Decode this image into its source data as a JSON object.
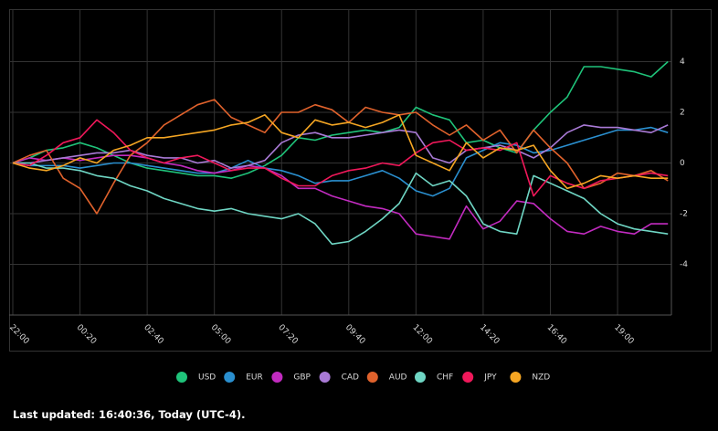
{
  "chart_data": {
    "type": "line",
    "categories": [
      "22:00",
      null,
      null,
      null,
      "00:20",
      null,
      null,
      null,
      "02:40",
      null,
      null,
      null,
      "05:00",
      null,
      null,
      null,
      "07:20",
      null,
      null,
      null,
      "09:40",
      null,
      null,
      null,
      "12:00",
      null,
      null,
      null,
      "14:20",
      null,
      null,
      null,
      "16:40",
      null,
      null,
      null,
      "19:00",
      null,
      null,
      null
    ],
    "ylim": [
      -6,
      6
    ],
    "yticks": [
      -4,
      -2,
      0,
      2,
      4
    ],
    "grid": true,
    "series": [
      {
        "name": "USD",
        "color": "#1fc37a",
        "values": [
          0,
          0.2,
          0.5,
          0.6,
          0.8,
          0.6,
          0.3,
          0,
          -0.2,
          -0.3,
          -0.4,
          -0.5,
          -0.5,
          -0.6,
          -0.4,
          -0.1,
          0.3,
          1.0,
          0.9,
          1.1,
          1.2,
          1.3,
          1.2,
          1.4,
          2.2,
          1.9,
          1.7,
          0.8,
          0.9,
          0.6,
          0.4,
          1.3,
          2.0,
          2.6,
          3.8,
          3.8,
          3.7,
          3.6,
          3.4,
          4.0
        ]
      },
      {
        "name": "EUR",
        "color": "#2a8fcf",
        "values": [
          0,
          -0.1,
          -0.1,
          -0.1,
          -0.2,
          -0.1,
          0,
          0,
          -0.1,
          -0.2,
          -0.3,
          -0.4,
          -0.4,
          -0.2,
          0.1,
          -0.2,
          -0.3,
          -0.5,
          -0.8,
          -0.7,
          -0.7,
          -0.5,
          -0.3,
          -0.6,
          -1.1,
          -1.3,
          -1.0,
          0.2,
          0.5,
          0.8,
          0.7,
          0.4,
          0.5,
          0.7,
          0.9,
          1.1,
          1.3,
          1.3,
          1.4,
          1.2
        ]
      },
      {
        "name": "GBP",
        "color": "#c22bc0",
        "values": [
          0,
          0.2,
          0.1,
          0.2,
          0.1,
          0.2,
          0.3,
          0.3,
          0.2,
          0,
          -0.1,
          -0.3,
          -0.4,
          -0.3,
          -0.1,
          -0.2,
          -0.5,
          -1.0,
          -1.0,
          -1.3,
          -1.5,
          -1.7,
          -1.8,
          -2.0,
          -2.8,
          -2.9,
          -3.0,
          -1.7,
          -2.6,
          -2.3,
          -1.5,
          -1.6,
          -2.2,
          -2.7,
          -2.8,
          -2.5,
          -2.7,
          -2.8,
          -2.4,
          -2.4
        ]
      },
      {
        "name": "CAD",
        "color": "#a97ad6",
        "values": [
          0,
          0,
          0.1,
          0.2,
          0.3,
          0.4,
          0.4,
          0.5,
          0.3,
          0.2,
          0.2,
          0,
          0.1,
          -0.2,
          -0.1,
          0.1,
          0.8,
          1.1,
          1.2,
          1.0,
          1.0,
          1.1,
          1.2,
          1.3,
          1.2,
          0.2,
          0,
          0.5,
          0.6,
          0.7,
          0.5,
          0.2,
          0.6,
          1.2,
          1.5,
          1.4,
          1.4,
          1.3,
          1.2,
          1.5
        ]
      },
      {
        "name": "AUD",
        "color": "#e0622c",
        "values": [
          0,
          0.3,
          0.5,
          -0.6,
          -1.0,
          -2.0,
          -0.8,
          0.3,
          0.8,
          1.5,
          1.9,
          2.3,
          2.5,
          1.8,
          1.5,
          1.2,
          2.0,
          2.0,
          2.3,
          2.1,
          1.6,
          2.2,
          2.0,
          1.9,
          2.0,
          1.5,
          1.1,
          1.5,
          0.9,
          1.3,
          0.4,
          1.3,
          0.6,
          0.0,
          -1.0,
          -0.8,
          -0.4,
          -0.5,
          -0.3,
          -0.7
        ]
      },
      {
        "name": "CHF",
        "color": "#6fd6c4",
        "values": [
          0,
          0,
          -0.2,
          -0.2,
          -0.3,
          -0.5,
          -0.6,
          -0.9,
          -1.1,
          -1.4,
          -1.6,
          -1.8,
          -1.9,
          -1.8,
          -2.0,
          -2.1,
          -2.2,
          -2.0,
          -2.4,
          -3.2,
          -3.1,
          -2.7,
          -2.2,
          -1.6,
          -0.4,
          -0.9,
          -0.7,
          -1.3,
          -2.4,
          -2.7,
          -2.8,
          -0.5,
          -0.8,
          -1.1,
          -1.4,
          -2.0,
          -2.4,
          -2.6,
          -2.7,
          -2.8
        ]
      },
      {
        "name": "JPY",
        "color": "#f0185a",
        "values": [
          0,
          -0.1,
          0.3,
          0.8,
          1.0,
          1.7,
          1.2,
          0.5,
          0.2,
          0,
          0.2,
          0.3,
          0,
          -0.3,
          -0.2,
          -0.2,
          -0.6,
          -0.9,
          -0.9,
          -0.5,
          -0.3,
          -0.2,
          0,
          -0.1,
          0.4,
          0.8,
          0.9,
          0.5,
          0.6,
          0.5,
          0.8,
          -1.3,
          -0.5,
          -0.8,
          -1.0,
          -0.7,
          -0.6,
          -0.5,
          -0.4,
          -0.5
        ]
      },
      {
        "name": "NZD",
        "color": "#f5a623",
        "values": [
          0,
          -0.2,
          -0.3,
          -0.1,
          0.2,
          0,
          0.5,
          0.7,
          1.0,
          1.0,
          1.1,
          1.2,
          1.3,
          1.5,
          1.6,
          1.9,
          1.2,
          1.0,
          1.7,
          1.5,
          1.6,
          1.4,
          1.6,
          1.9,
          0.3,
          0,
          -0.3,
          0.8,
          0.2,
          0.6,
          0.5,
          0.7,
          -0.3,
          -1.0,
          -0.8,
          -0.5,
          -0.6,
          -0.5,
          -0.6,
          -0.6
        ]
      }
    ]
  },
  "footer": "Last updated: 16:40:36, Today (UTC-4)."
}
